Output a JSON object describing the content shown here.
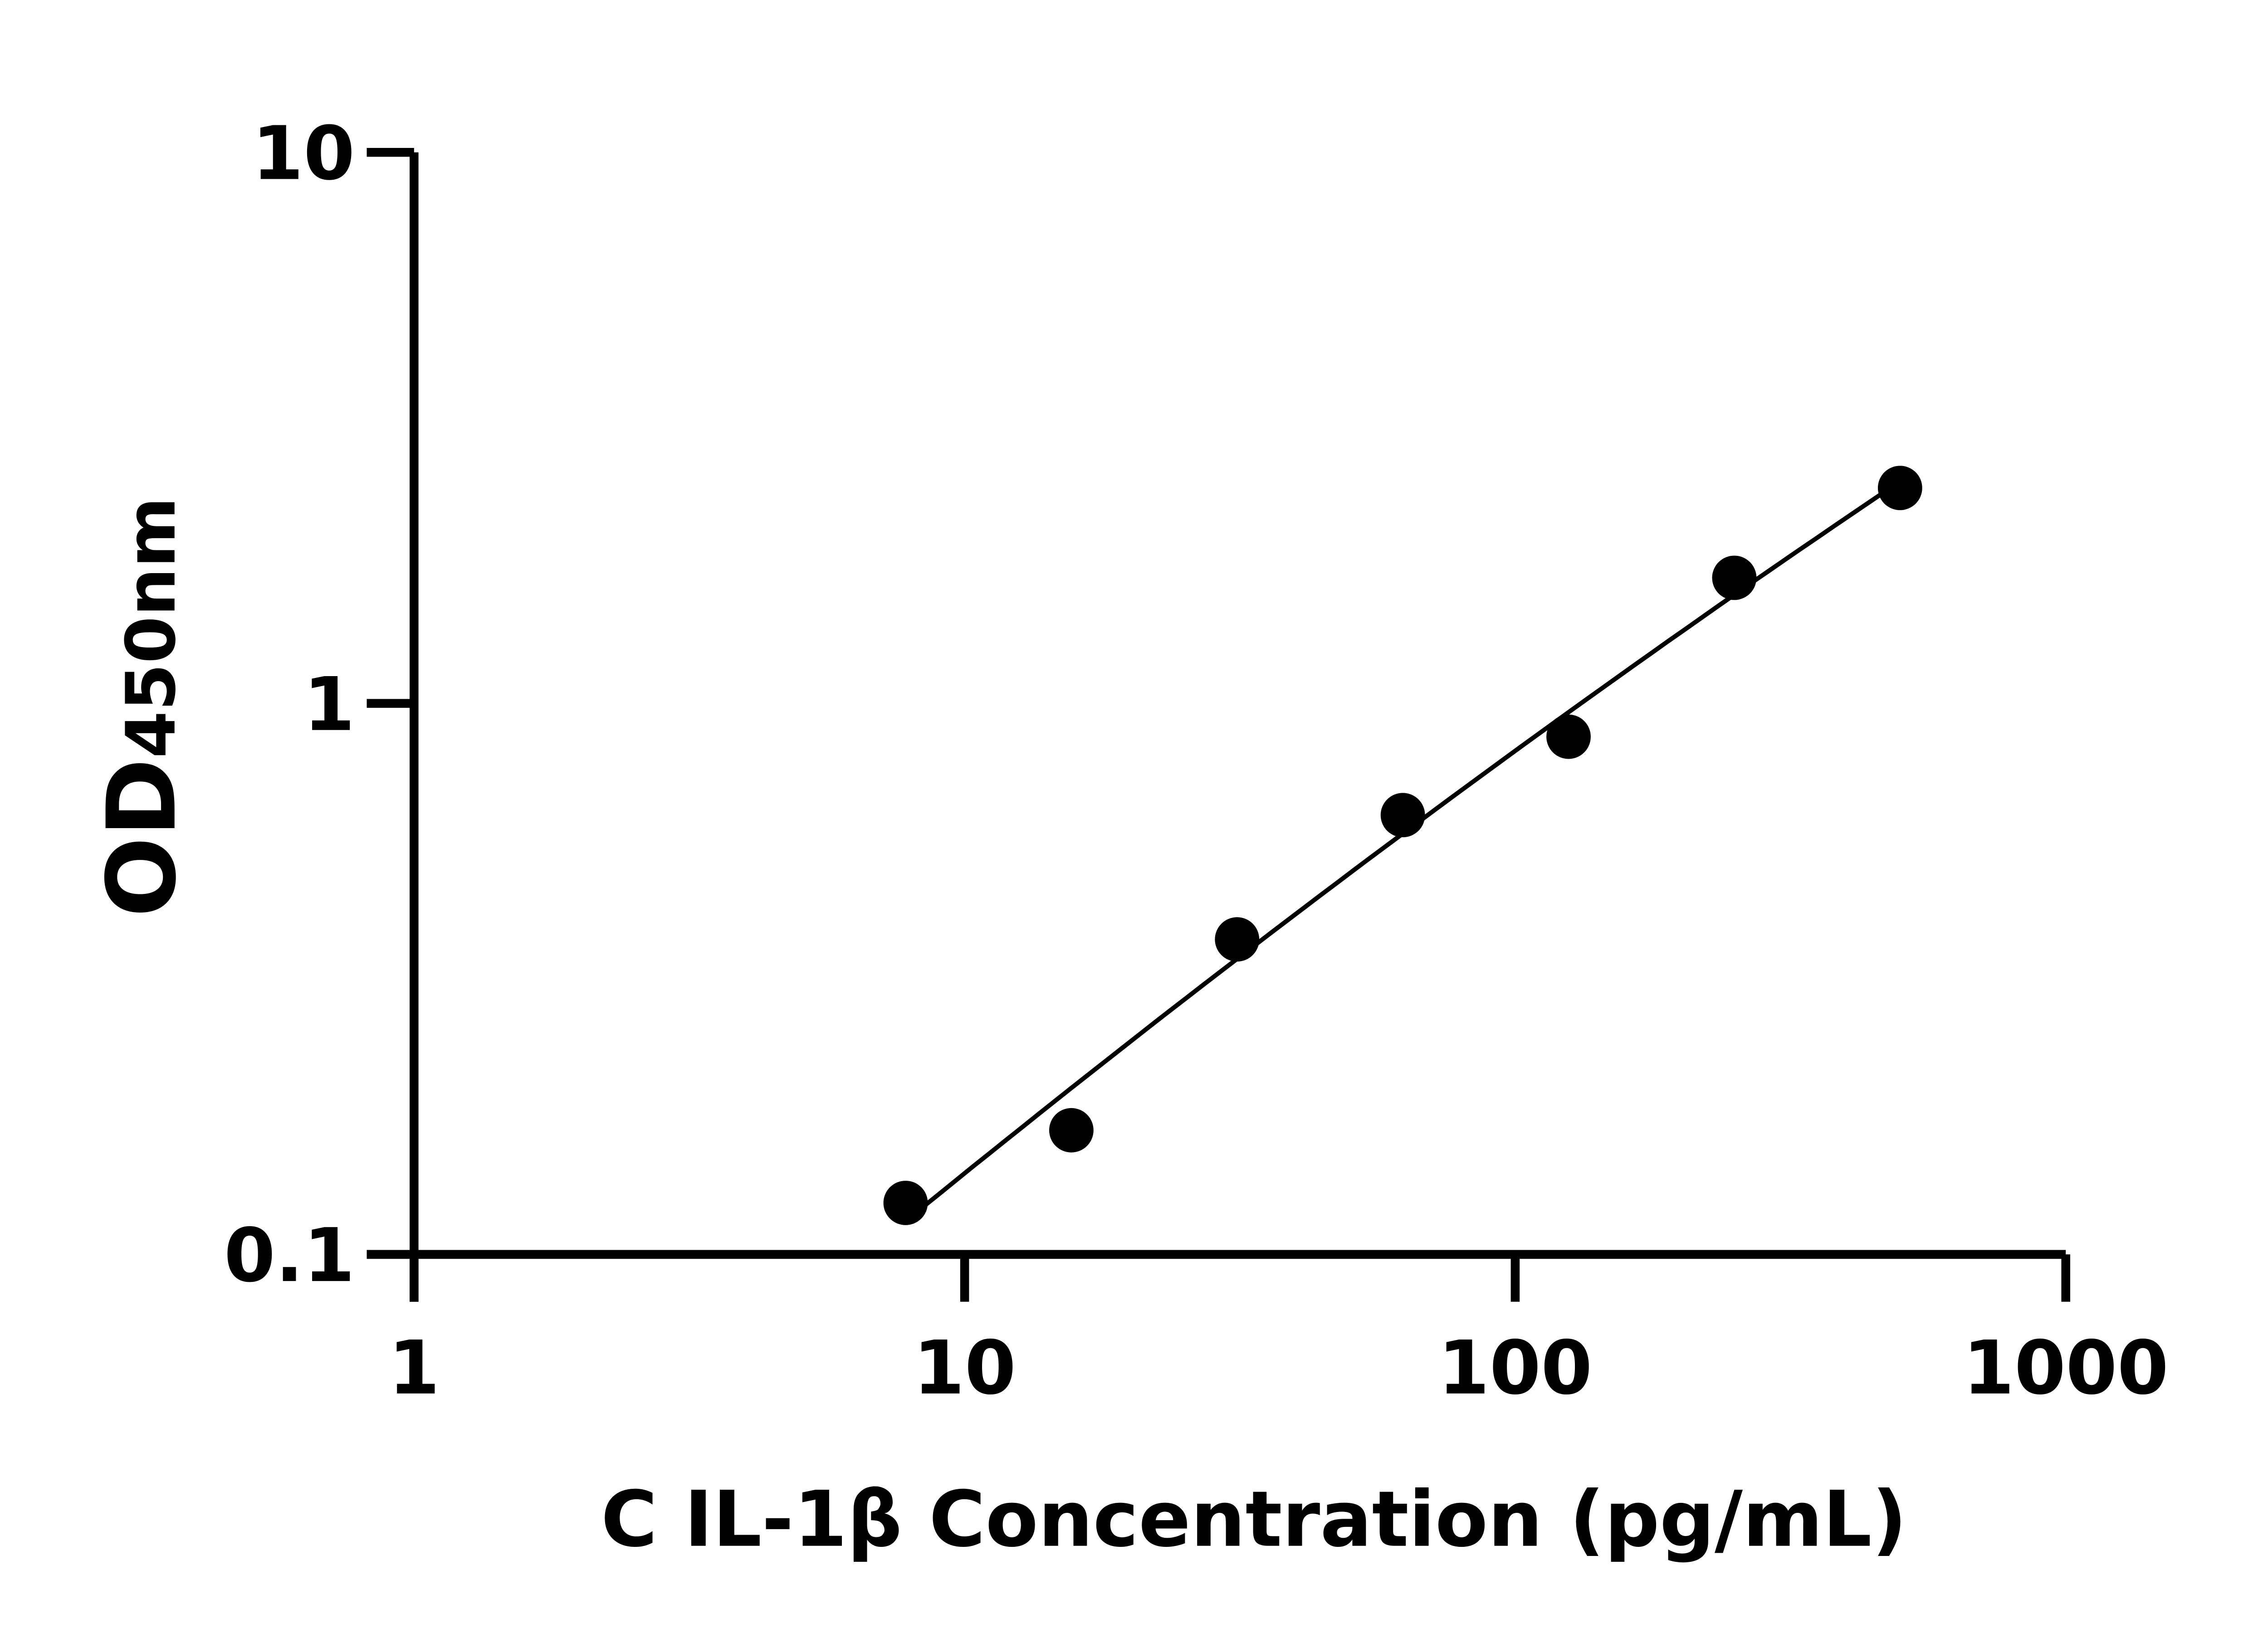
{
  "chart_data": {
    "type": "scatter",
    "title": "",
    "xlabel": "C IL-1β Concentration (pg/mL)",
    "ylabel_main": "OD",
    "ylabel_sub": "450nm",
    "x_scale": "log",
    "y_scale": "log",
    "xlim": [
      1,
      1000
    ],
    "ylim": [
      0.1,
      10
    ],
    "x_ticks": [
      "1",
      "10",
      "100",
      "1000"
    ],
    "y_ticks": [
      "0.1",
      "1",
      "10"
    ],
    "grid": false,
    "legend": "none",
    "marker_color": "#000000",
    "fit_line": true,
    "points": [
      {
        "x": 7.8125,
        "y": 0.124
      },
      {
        "x": 15.625,
        "y": 0.168
      },
      {
        "x": 31.25,
        "y": 0.373
      },
      {
        "x": 62.5,
        "y": 0.627
      },
      {
        "x": 125,
        "y": 0.87
      },
      {
        "x": 250,
        "y": 1.69
      },
      {
        "x": 500,
        "y": 2.46
      }
    ]
  }
}
